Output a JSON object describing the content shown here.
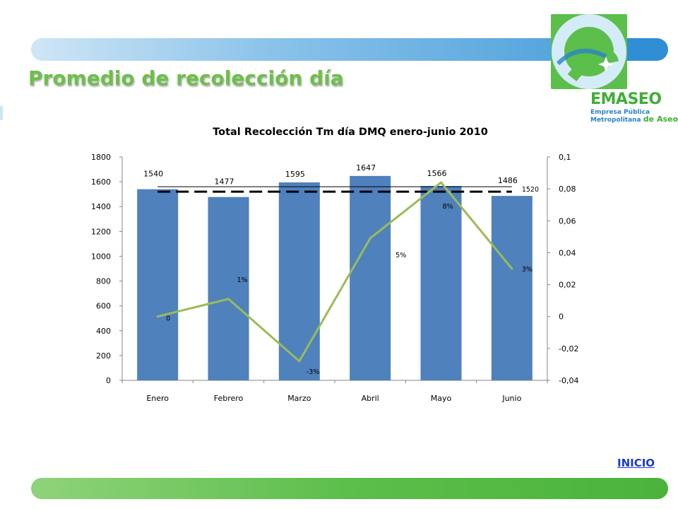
{
  "page": {
    "title": "Promedio de recolección día"
  },
  "logo": {
    "name": "EMASEO",
    "line1": "Empresa Pública",
    "line2": "Metropolitana",
    "line3": "de Aseo"
  },
  "nav": {
    "inicio_label": "INICIO"
  },
  "colors": {
    "bar": "#4f81bd",
    "line": "#9bbb59",
    "title_green": "#6cc04a",
    "link": "#1a3ccf"
  },
  "chart_data": {
    "type": "bar",
    "title": "Total Recolección Tm día DMQ enero-junio 2010",
    "categories": [
      "Enero",
      "Febrero",
      "Marzo",
      "Abril",
      "Mayo",
      "Junio"
    ],
    "series": [
      {
        "type": "bar",
        "axis": "left",
        "values": [
          1540,
          1477,
          1595,
          1647,
          1566,
          1486
        ],
        "labels": [
          "1540",
          "1477",
          "1595",
          "1647",
          "1566",
          "1486"
        ]
      },
      {
        "type": "line",
        "axis": "right",
        "values": [
          0,
          0.011,
          -0.028,
          0.049,
          0.084,
          0.03
        ],
        "labels": [
          "0",
          "1%",
          "-3%",
          "5%",
          "8%",
          "3%"
        ]
      }
    ],
    "average": {
      "value": 1520,
      "label": "1520",
      "style": "dashed"
    },
    "reference_line": {
      "value": 1560
    },
    "y_left": {
      "min": 0,
      "max": 1800,
      "ticks": [
        "0",
        "200",
        "400",
        "600",
        "800",
        "1000",
        "1200",
        "1400",
        "1600",
        "1800"
      ]
    },
    "y_right": {
      "min": -0.04,
      "max": 0.1,
      "ticks": [
        "-0,04",
        "-0,02",
        "0",
        "0,02",
        "0,04",
        "0,06",
        "0,08",
        "0,1"
      ]
    },
    "grid": false,
    "legend": "none"
  }
}
